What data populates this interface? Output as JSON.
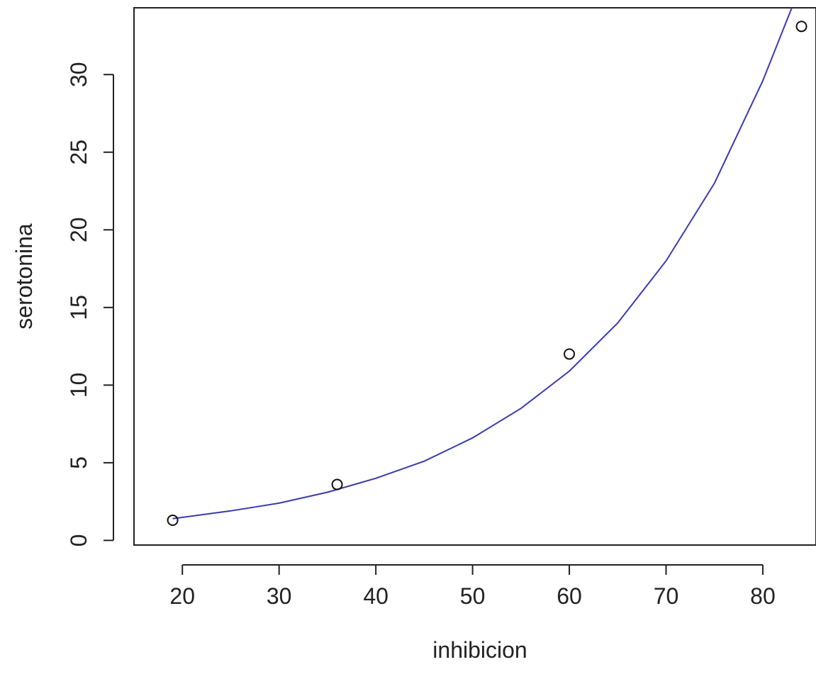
{
  "chart_data": {
    "type": "scatter",
    "title": "",
    "xlabel": "inhibicion",
    "ylabel": "serotonina",
    "xlim": [
      15,
      85.5
    ],
    "ylim": [
      -0.3,
      34.3
    ],
    "x_ticks": [
      20,
      30,
      40,
      50,
      60,
      70,
      80
    ],
    "y_ticks": [
      0,
      5,
      10,
      15,
      20,
      25,
      30
    ],
    "grid": false,
    "points": [
      {
        "x": 19,
        "y": 1.3
      },
      {
        "x": 36,
        "y": 3.6
      },
      {
        "x": 60,
        "y": 12.0
      },
      {
        "x": 84,
        "y": 33.1
      }
    ],
    "fit_curve": {
      "color": "#3a3ab0",
      "x": [
        19,
        25,
        30,
        35,
        40,
        45,
        50,
        55,
        60,
        65,
        70,
        75,
        80,
        83
      ],
      "y": [
        1.4,
        1.9,
        2.4,
        3.1,
        4.0,
        5.1,
        6.6,
        8.5,
        10.9,
        14.0,
        18.0,
        23.0,
        29.6,
        34.3
      ]
    }
  }
}
